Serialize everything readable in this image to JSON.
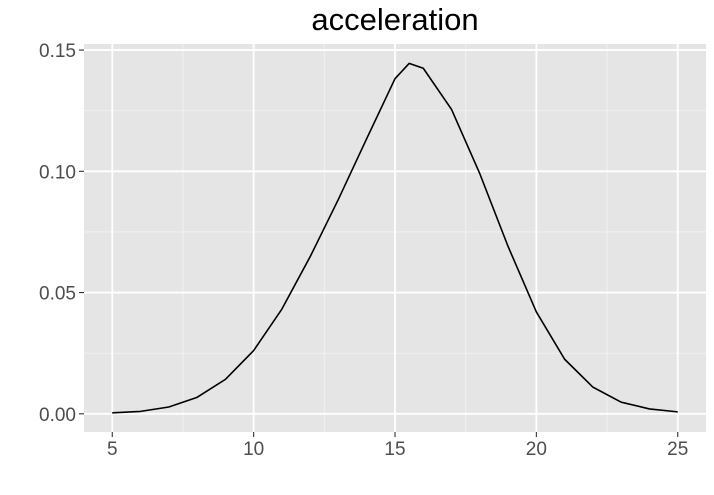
{
  "chart_data": {
    "type": "line",
    "title": "acceleration",
    "xlabel": "",
    "ylabel": "",
    "xlim": [
      4.0,
      26.0
    ],
    "ylim": [
      -0.0075,
      0.1525
    ],
    "x_ticks": [
      5,
      10,
      15,
      20,
      25
    ],
    "x_tick_labels": [
      "5",
      "10",
      "15",
      "20",
      "25"
    ],
    "y_ticks": [
      0.0,
      0.05,
      0.1,
      0.15
    ],
    "y_tick_labels": [
      "0.00",
      "0.05",
      "0.10",
      "0.15"
    ],
    "grid": true,
    "legend": "none",
    "series": [
      {
        "x": [
          5,
          6,
          7,
          8,
          9,
          10,
          11,
          12,
          13,
          14,
          15,
          15.5,
          16,
          17,
          18,
          19,
          20,
          21,
          22,
          23,
          24,
          25
        ],
        "y": [
          0.0004,
          0.001,
          0.0028,
          0.0068,
          0.0142,
          0.0261,
          0.0432,
          0.0648,
          0.0885,
          0.1135,
          0.1382,
          0.1445,
          0.1425,
          0.1255,
          0.099,
          0.069,
          0.042,
          0.0225,
          0.011,
          0.0048,
          0.002,
          0.0008
        ],
        "color": "#000000"
      }
    ],
    "colors": {
      "panel_background": "#e5e5e5",
      "grid_major": "#ffffff",
      "grid_minor": "#f2f2f2",
      "tick_text": "#4d4d4d",
      "tick_mark": "#333333"
    }
  }
}
